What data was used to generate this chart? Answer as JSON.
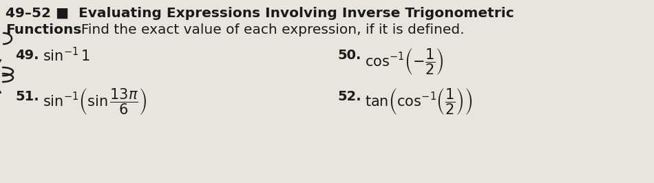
{
  "background_color": "#e8e5df",
  "font_color": "#1a1a1a",
  "title_bold": "49–52 ■  Evaluating Expressions Involving Inverse Trigonometric",
  "line2_bold": "Functions",
  "line2_normal": "  Find the exact value of each expression, if it is defined.",
  "ex49_num": "49.",
  "ex49_expr": "$\\sin^{-1} 1$",
  "ex50_num": "50.",
  "ex50_expr": "$\\cos^{-1}\\!\\left(-\\dfrac{1}{2}\\right)$",
  "ex51_num": "51.",
  "ex51_expr": "$\\sin^{-1}\\!\\left(\\sin\\dfrac{13\\pi}{6}\\right)$",
  "ex52_num": "52.",
  "ex52_expr": "$\\tan\\!\\left(\\cos^{-1}\\!\\left(\\dfrac{1}{2}\\right)\\right)$",
  "title_fontsize": 14.5,
  "num_fontsize": 14,
  "expr_fontsize": 15
}
